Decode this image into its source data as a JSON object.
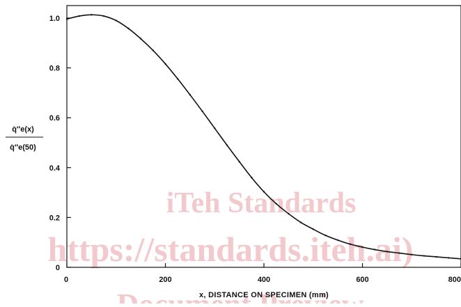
{
  "chart_data": {
    "type": "line",
    "title": "",
    "xlabel": "x, DISTANCE ON SPECIMEN (mm)",
    "ylabel": {
      "numerator": "q̇″e(x)",
      "denominator": "q̇″e(50)"
    },
    "xlim": [
      0,
      800
    ],
    "ylim": [
      0,
      1.05
    ],
    "x_ticks": [
      "0",
      "200",
      "400",
      "600",
      "800"
    ],
    "y_ticks": [
      "0",
      "0.2",
      "0.4",
      "0.6",
      "0.8",
      "1.0"
    ],
    "grid": false,
    "series": [
      {
        "x": [
          0,
          25,
          50,
          75,
          100,
          125,
          150,
          175,
          200,
          225,
          250,
          275,
          300,
          325,
          350,
          375,
          400,
          425,
          450,
          475,
          500,
          525,
          550,
          575,
          600,
          625,
          650,
          675,
          700,
          725,
          750,
          775,
          800
        ],
        "y": [
          0.996,
          1.008,
          1.013,
          1.008,
          0.99,
          0.958,
          0.917,
          0.87,
          0.816,
          0.756,
          0.692,
          0.626,
          0.558,
          0.49,
          0.424,
          0.36,
          0.303,
          0.255,
          0.215,
          0.18,
          0.153,
          0.128,
          0.109,
          0.093,
          0.081,
          0.071,
          0.063,
          0.057,
          0.051,
          0.046,
          0.042,
          0.038,
          0.034
        ]
      }
    ]
  },
  "watermark": {
    "line1": "iTeh Standards",
    "line2": "https://standards.iteh.ai)",
    "line3": "Document Preview"
  },
  "colors": {
    "line": "#111111",
    "axis": "#111111",
    "watermark": "#f2c9cd"
  }
}
